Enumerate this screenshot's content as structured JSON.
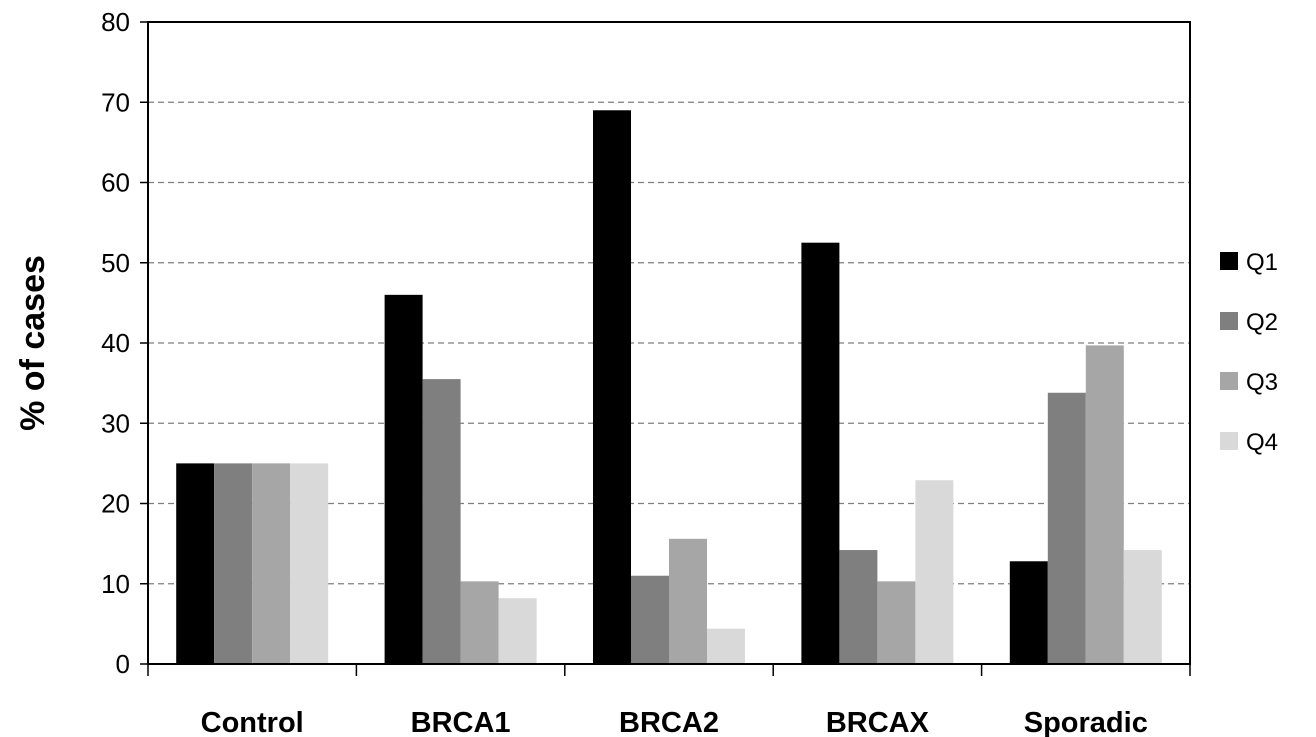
{
  "chart_data": {
    "type": "bar",
    "title": "",
    "xlabel": "",
    "ylabel": "% of cases",
    "ylim": [
      0,
      80
    ],
    "yticks": [
      0,
      10,
      20,
      30,
      40,
      50,
      60,
      70,
      80
    ],
    "grid": true,
    "legend_position": "right",
    "categories": [
      "Control",
      "BRCA1",
      "BRCA2",
      "BRCAX",
      "Sporadic"
    ],
    "series": [
      {
        "name": "Q1",
        "color": "#000000",
        "values": [
          25,
          46,
          69,
          52.5,
          12.8
        ]
      },
      {
        "name": "Q2",
        "color": "#7f7f7f",
        "values": [
          25,
          35.5,
          11,
          14.2,
          33.8
        ]
      },
      {
        "name": "Q3",
        "color": "#a6a6a6",
        "values": [
          25,
          10.3,
          15.6,
          10.3,
          39.7
        ]
      },
      {
        "name": "Q4",
        "color": "#d9d9d9",
        "values": [
          25,
          8.2,
          4.4,
          22.9,
          14.2
        ]
      }
    ]
  }
}
